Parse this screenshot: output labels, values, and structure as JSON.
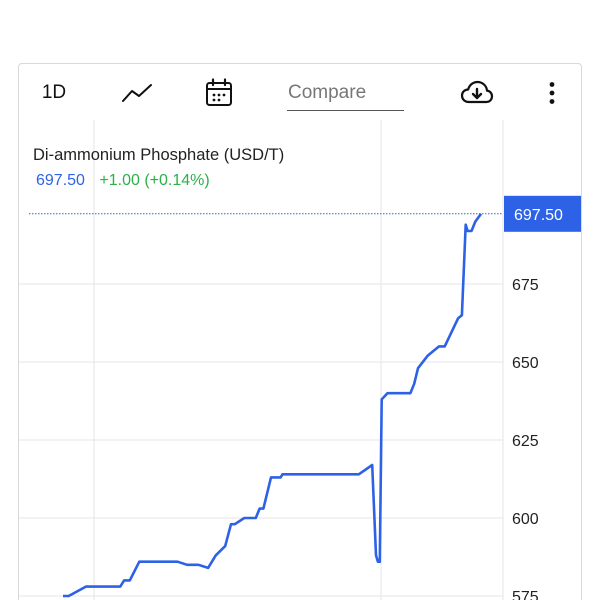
{
  "toolbar": {
    "range_label": "1D",
    "chart_type_icon": "line-chart-icon",
    "calendar_icon": "calendar-icon",
    "compare_placeholder": "Compare",
    "download_icon": "cloud-download-icon",
    "more_icon": "more-vertical-icon"
  },
  "colors": {
    "line": "#2d62e6",
    "last_price_tag": "#2d62e6",
    "positive_change": "#2bb14a",
    "grid": "#e6e6e6"
  },
  "chart_data": {
    "type": "line",
    "title": "Di-ammonium Phosphate (USD/T)",
    "last_price": "697.50",
    "change": "+1.00",
    "change_pct": "(+0.14%)",
    "last_price_label": "697.50",
    "y_ticks": [
      "575",
      "600",
      "625",
      "650",
      "675"
    ],
    "ylim": [
      567,
      717
    ],
    "grid": true,
    "series": [
      {
        "x": [
          0,
          3,
          12,
          30,
          32,
          35,
          40,
          42,
          50,
          60,
          65,
          70,
          71,
          76,
          80,
          85,
          88,
          90,
          95,
          98,
          101,
          103,
          105,
          109,
          112,
          114,
          115,
          117,
          120,
          125,
          128,
          135,
          155,
          162,
          164,
          165,
          166,
          167,
          170,
          182,
          184,
          186,
          191,
          193,
          197,
          200,
          207,
          209,
          211,
          212,
          214,
          216,
          219
        ],
        "values": [
          575,
          575,
          578,
          578,
          580,
          580,
          586,
          586,
          586,
          586,
          585,
          585,
          585,
          584,
          588,
          591,
          598,
          598,
          600,
          600,
          600,
          603,
          603,
          613,
          613,
          613,
          614,
          614,
          614,
          614,
          614,
          614,
          614,
          617,
          588,
          586,
          586,
          638,
          640,
          640,
          643,
          648,
          652,
          653,
          655,
          655,
          664,
          665,
          694,
          692,
          692,
          695,
          697.5
        ]
      }
    ]
  }
}
